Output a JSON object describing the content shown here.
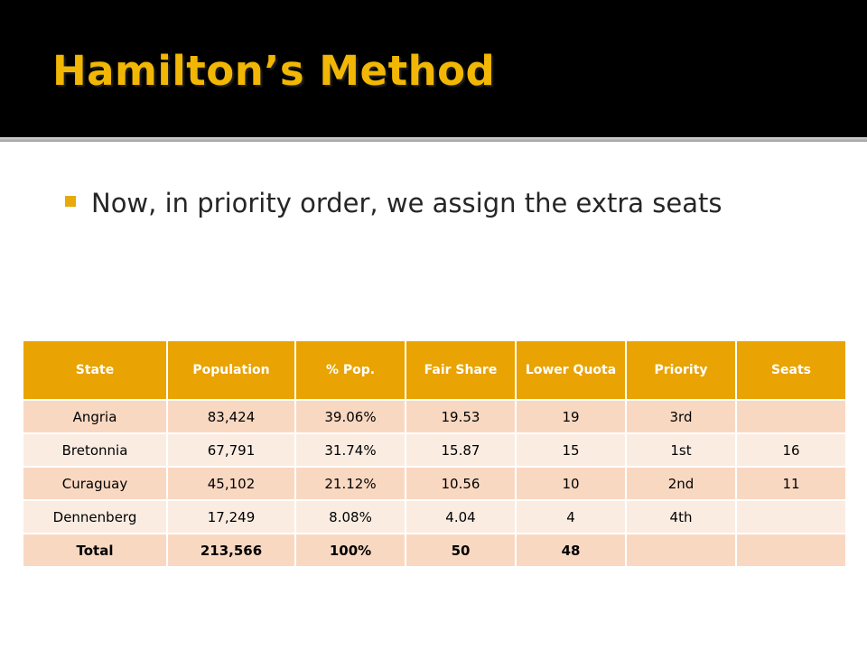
{
  "slide": {
    "title": "Hamilton’s Method",
    "bullet": "Now, in priority order, we assign the extra seats"
  },
  "table": {
    "headers": [
      "State",
      "Population",
      "% Pop.",
      "Fair Share",
      "Lower Quota",
      "Priority",
      "Seats"
    ],
    "rows": [
      [
        "Angria",
        "83,424",
        "39.06%",
        "19.53",
        "19",
        "3rd",
        ""
      ],
      [
        "Bretonnia",
        "67,791",
        "31.74%",
        "15.87",
        "15",
        "1st",
        "16"
      ],
      [
        "Curaguay",
        "45,102",
        "21.12%",
        "10.56",
        "10",
        "2nd",
        "11"
      ],
      [
        "Dennenberg",
        "17,249",
        "8.08%",
        "4.04",
        "4",
        "4th",
        ""
      ]
    ],
    "total": [
      "Total",
      "213,566",
      "100%",
      "50",
      "48",
      "",
      ""
    ]
  },
  "colors": {
    "title": "#f2b705",
    "header_bg": "#e9a302",
    "row_odd": "#f9d8c2",
    "row_even": "#fbece2",
    "bullet": "#e8a90a"
  }
}
